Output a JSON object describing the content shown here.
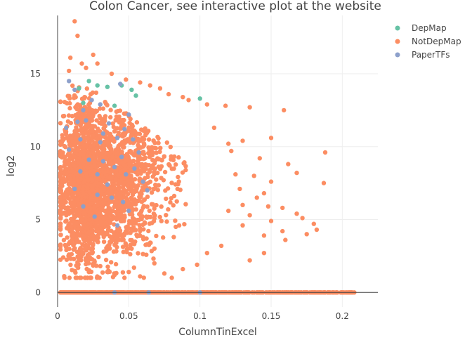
{
  "chart_data": {
    "type": "scatter",
    "title": "Colon Cancer, see interactive plot at the website",
    "xlabel": "ColumnTinExcel",
    "ylabel": "log2",
    "xlim": [
      0,
      0.225
    ],
    "ylim": [
      -1,
      19
    ],
    "xticks": [
      0,
      0.05,
      0.1,
      0.15,
      0.2
    ],
    "xtick_labels": [
      "0",
      "0.05",
      "0.1",
      "0.15",
      "0.2"
    ],
    "yticks": [
      0,
      5,
      10,
      15
    ],
    "ytick_labels": [
      "0",
      "5",
      "10",
      "15"
    ],
    "grid": true,
    "legend_position": "top-right",
    "series": [
      {
        "name": "DepMap",
        "color": "#66c2a5",
        "points": [
          [
            0.015,
            14.0
          ],
          [
            0.022,
            14.5
          ],
          [
            0.028,
            14.2
          ],
          [
            0.035,
            14.1
          ],
          [
            0.045,
            14.2
          ],
          [
            0.055,
            13.5
          ],
          [
            0.052,
            13.9
          ],
          [
            0.1,
            13.3
          ],
          [
            0.018,
            13.0
          ],
          [
            0.04,
            12.8
          ]
        ]
      },
      {
        "name": "NotDepMap",
        "color": "#fc8d62",
        "points": [
          [
            0.012,
            18.6
          ],
          [
            0.014,
            17.6
          ],
          [
            0.025,
            16.3
          ],
          [
            0.009,
            16.1
          ],
          [
            0.017,
            15.7
          ],
          [
            0.028,
            15.7
          ],
          [
            0.008,
            15.2
          ],
          [
            0.02,
            15.4
          ],
          [
            0.038,
            15.0
          ],
          [
            0.048,
            14.6
          ],
          [
            0.058,
            14.4
          ],
          [
            0.065,
            14.2
          ],
          [
            0.072,
            14.0
          ],
          [
            0.078,
            13.6
          ],
          [
            0.088,
            13.4
          ],
          [
            0.092,
            13.2
          ],
          [
            0.105,
            12.9
          ],
          [
            0.118,
            12.8
          ],
          [
            0.135,
            12.7
          ],
          [
            0.159,
            12.5
          ],
          [
            0.11,
            11.3
          ],
          [
            0.12,
            10.2
          ],
          [
            0.13,
            10.4
          ],
          [
            0.15,
            10.6
          ],
          [
            0.122,
            9.7
          ],
          [
            0.142,
            9.2
          ],
          [
            0.162,
            8.8
          ],
          [
            0.188,
            9.6
          ],
          [
            0.125,
            8.1
          ],
          [
            0.138,
            8.0
          ],
          [
            0.15,
            7.6
          ],
          [
            0.168,
            8.2
          ],
          [
            0.187,
            7.5
          ],
          [
            0.128,
            7.1
          ],
          [
            0.14,
            6.5
          ],
          [
            0.145,
            6.8
          ],
          [
            0.13,
            6.0
          ],
          [
            0.148,
            5.9
          ],
          [
            0.158,
            5.8
          ],
          [
            0.168,
            5.4
          ],
          [
            0.12,
            5.6
          ],
          [
            0.135,
            5.3
          ],
          [
            0.15,
            4.9
          ],
          [
            0.158,
            4.2
          ],
          [
            0.172,
            5.1
          ],
          [
            0.18,
            4.7
          ],
          [
            0.175,
            4.0
          ],
          [
            0.182,
            4.3
          ],
          [
            0.16,
            3.6
          ],
          [
            0.145,
            3.9
          ],
          [
            0.13,
            4.6
          ],
          [
            0.115,
            3.2
          ],
          [
            0.145,
            2.7
          ],
          [
            0.135,
            2.2
          ],
          [
            0.098,
            1.9
          ],
          [
            0.105,
            2.7
          ],
          [
            0.088,
            1.6
          ],
          [
            0.075,
            1.3
          ],
          [
            0.068,
            2.0
          ],
          [
            0.058,
            1.1
          ],
          [
            0.05,
            1.4
          ],
          [
            0.04,
            1.2
          ],
          [
            0.03,
            1.8
          ],
          [
            0.022,
            1.4
          ],
          [
            0.015,
            2.2
          ],
          [
            0.008,
            2.6
          ],
          [
            0.006,
            3.1
          ],
          [
            0.004,
            2.4
          ]
        ],
        "cloud": {
          "description": "dense cluster",
          "x_range": [
            0.002,
            0.09
          ],
          "y_range": [
            1.0,
            16.0
          ],
          "count": 2600,
          "x_mode": 0.025,
          "y_mode": 7.5
        },
        "zero_band": {
          "y": 0,
          "x_range": [
            0.002,
            0.21
          ],
          "count": 700
        }
      },
      {
        "name": "PaperTFs",
        "color": "#8da0cb",
        "points": [
          [
            0.008,
            14.5
          ],
          [
            0.012,
            13.9
          ],
          [
            0.018,
            12.5
          ],
          [
            0.02,
            11.8
          ],
          [
            0.016,
            10.5
          ],
          [
            0.024,
            13.2
          ],
          [
            0.03,
            12.9
          ],
          [
            0.036,
            11.6
          ],
          [
            0.032,
            10.9
          ],
          [
            0.03,
            10.3
          ],
          [
            0.042,
            10.6
          ],
          [
            0.047,
            11.2
          ],
          [
            0.05,
            12.2
          ],
          [
            0.053,
            10.5
          ],
          [
            0.057,
            9.6
          ],
          [
            0.045,
            9.3
          ],
          [
            0.04,
            8.6
          ],
          [
            0.035,
            7.4
          ],
          [
            0.028,
            8.1
          ],
          [
            0.022,
            9.1
          ],
          [
            0.016,
            8.3
          ],
          [
            0.014,
            11.7
          ],
          [
            0.032,
            9.0
          ],
          [
            0.048,
            8.1
          ],
          [
            0.054,
            8.5
          ],
          [
            0.06,
            7.6
          ],
          [
            0.063,
            7.0
          ],
          [
            0.038,
            6.5
          ],
          [
            0.028,
            6.7
          ],
          [
            0.046,
            6.2
          ],
          [
            0.05,
            5.6
          ],
          [
            0.042,
            4.6
          ],
          [
            0.026,
            5.2
          ],
          [
            0.018,
            5.9
          ],
          [
            0.012,
            7.1
          ],
          [
            0.008,
            9.8
          ],
          [
            0.006,
            11.3
          ],
          [
            0.044,
            14.3
          ],
          [
            0.04,
            0
          ],
          [
            0.064,
            0
          ],
          [
            0.1,
            0
          ]
        ]
      }
    ]
  }
}
